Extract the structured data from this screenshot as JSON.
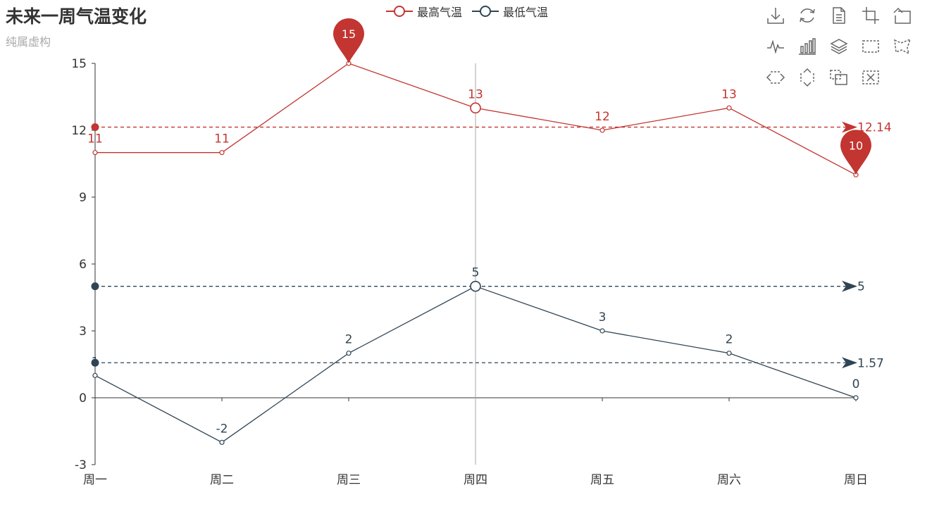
{
  "title": "未来一周气温变化",
  "subtitle": "纯属虚构",
  "legend": [
    {
      "name": "最高气温",
      "color": "#c23531"
    },
    {
      "name": "最低气温",
      "color": "#2f4554"
    }
  ],
  "toolbox": [
    {
      "name": "save-as-image",
      "icon": "download-icon"
    },
    {
      "name": "restore",
      "icon": "refresh-icon"
    },
    {
      "name": "data-view",
      "icon": "document-icon"
    },
    {
      "name": "data-zoom",
      "icon": "zoom-crop-icon"
    },
    {
      "name": "data-zoom-back",
      "icon": "zoom-back-icon"
    },
    {
      "name": "line-chart",
      "icon": "line-chart-icon"
    },
    {
      "name": "bar-chart",
      "icon": "bar-chart-icon"
    },
    {
      "name": "stack",
      "icon": "layers-icon"
    },
    {
      "name": "brush-rect",
      "icon": "rect-select-icon"
    },
    {
      "name": "brush-polygon",
      "icon": "polygon-select-icon"
    },
    {
      "name": "brush-line-x",
      "icon": "horizontal-select-icon"
    },
    {
      "name": "brush-line-y",
      "icon": "vertical-select-icon"
    },
    {
      "name": "brush-keep",
      "icon": "keep-selection-icon"
    },
    {
      "name": "brush-clear",
      "icon": "clear-selection-icon"
    }
  ],
  "chart_data": {
    "type": "line",
    "categories": [
      "周一",
      "周二",
      "周三",
      "周四",
      "周五",
      "周六",
      "周日"
    ],
    "ylim": [
      -3,
      15
    ],
    "yticks": [
      -3,
      0,
      3,
      6,
      9,
      12,
      15
    ],
    "axis_pointer_category": "周四",
    "series": [
      {
        "name": "最高气温",
        "color": "#c23531",
        "values": [
          11,
          11,
          15,
          13,
          12,
          13,
          10
        ],
        "mark_points": [
          {
            "type": "max",
            "category": "周三",
            "value": 15
          },
          {
            "type": "min",
            "category": "周日",
            "value": 10
          }
        ],
        "mark_lines": [
          {
            "type": "average",
            "value": 12.14,
            "label": "12.14"
          }
        ]
      },
      {
        "name": "最低气温",
        "color": "#2f4554",
        "values": [
          1,
          -2,
          2,
          5,
          3,
          2,
          0
        ],
        "mark_points": [],
        "mark_lines": [
          {
            "type": "max",
            "value": 5,
            "label": "5"
          },
          {
            "type": "average",
            "value": 1.57,
            "label": "1.57"
          }
        ]
      }
    ]
  }
}
